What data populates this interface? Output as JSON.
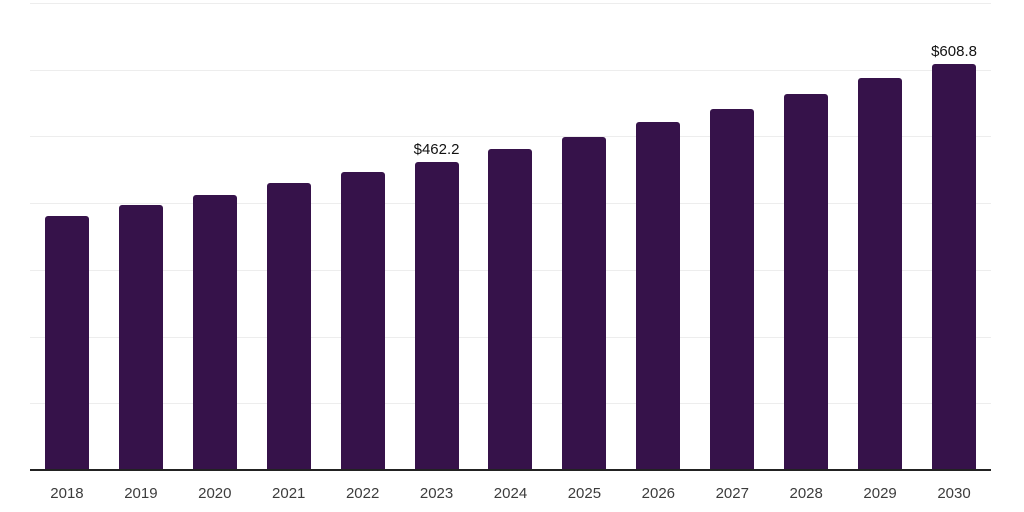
{
  "chart_data": {
    "type": "bar",
    "title": "",
    "xlabel": "",
    "ylabel": "",
    "categories": [
      "2018",
      "2019",
      "2020",
      "2021",
      "2022",
      "2023",
      "2024",
      "2025",
      "2026",
      "2027",
      "2028",
      "2029",
      "2030"
    ],
    "values": [
      381.5,
      396.5,
      411.5,
      429.5,
      446.0,
      462.2,
      481.5,
      499.5,
      521.0,
      541.5,
      564.0,
      588.0,
      608.8
    ],
    "value_labels": {
      "2023": "$462.2",
      "2030": "$608.8"
    },
    "value_prefix": "$",
    "ylim": [
      0,
      700
    ],
    "gridline_step": 100,
    "grid": true,
    "y_tick_labels_visible": false,
    "legend_position": "none",
    "colors": {
      "bar": "#36124A",
      "gridline": "#EDEDED",
      "axis_line": "#222222",
      "value_label": "#121212",
      "tick_label": "#3C3C3C",
      "background": "#FFFFFF"
    }
  }
}
